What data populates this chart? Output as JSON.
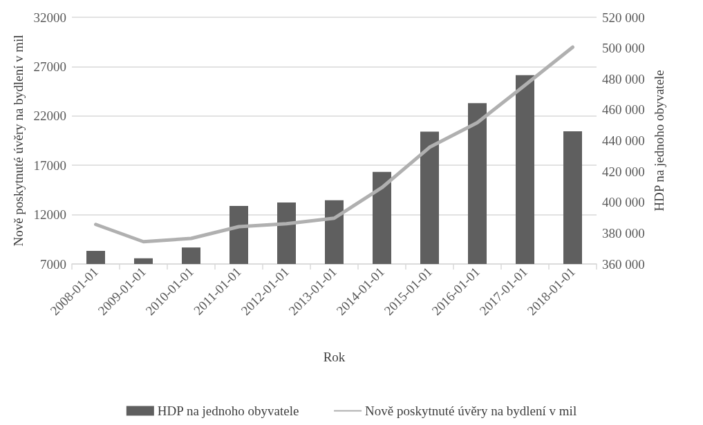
{
  "chart_data": {
    "type": "bar",
    "xlabel": "Rok",
    "ylabel": "Nově poskytnuté úvěry na bydlení v mil",
    "y2label": "HDP na jednoho obyvatele",
    "categories": [
      "2008-01-01",
      "2009-01-01",
      "2010-01-01",
      "2011-01-01",
      "2012-01-01",
      "2013-01-01",
      "2014-01-01",
      "2015-01-01",
      "2016-01-01",
      "2017-01-01",
      "2018-01-01"
    ],
    "series": [
      {
        "name": "HDP na jednoho obyvatele",
        "axis": "y2",
        "color": "#5f5f5f",
        "values": [
          368500,
          363700,
          370700,
          397700,
          399900,
          401300,
          419700,
          445800,
          464300,
          482500,
          446100
        ]
      },
      {
        "name": "Nově poskytnuté úvěry na bydlení v mil",
        "type": "line",
        "color": "#b0b0b0",
        "values": [
          11010,
          9260,
          9590,
          10780,
          11080,
          11640,
          14740,
          18830,
          21320,
          25120,
          28970
        ]
      }
    ],
    "ylim": [
      7000,
      32000
    ],
    "yticks": [
      7000,
      12000,
      17000,
      22000,
      27000,
      32000
    ],
    "y2lim": [
      360000,
      520000
    ],
    "y2ticks": [
      {
        "value": 360000,
        "label": "360 000"
      },
      {
        "value": 380000,
        "label": "380 000"
      },
      {
        "value": 400000,
        "label": "400 000"
      },
      {
        "value": 420000,
        "label": "420 000"
      },
      {
        "value": 440000,
        "label": "440 000"
      },
      {
        "value": 460000,
        "label": "460 000"
      },
      {
        "value": 480000,
        "label": "480 000"
      },
      {
        "value": 500000,
        "label": "500 000"
      },
      {
        "value": 520000,
        "label": "520 000"
      }
    ],
    "grid": "y",
    "legend": "bottom",
    "marker": "none",
    "line_style": "solid"
  }
}
